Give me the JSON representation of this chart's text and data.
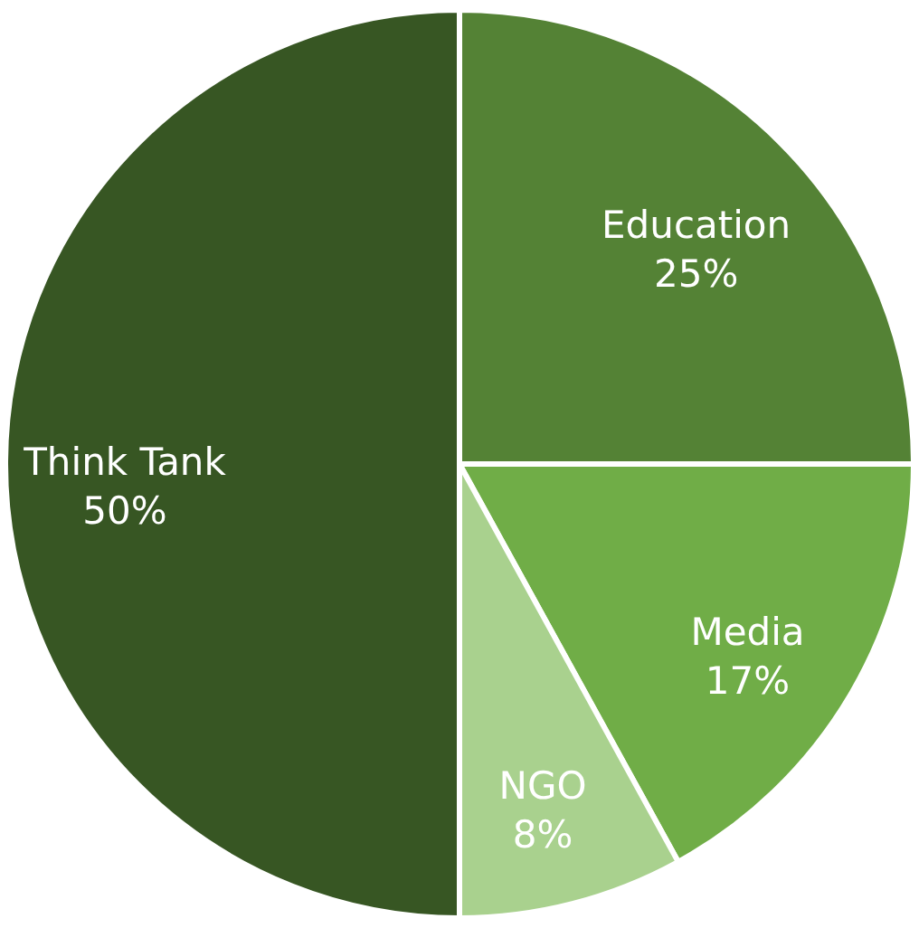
{
  "chart_data": {
    "type": "pie",
    "categories": [
      "Education",
      "Media",
      "NGO",
      "Think Tank"
    ],
    "values": [
      25,
      17,
      8,
      50
    ],
    "value_labels": [
      "25%",
      "17%",
      "8%",
      "50%"
    ],
    "colors": [
      "#548235",
      "#70ad47",
      "#a9d18e",
      "#375623"
    ]
  }
}
